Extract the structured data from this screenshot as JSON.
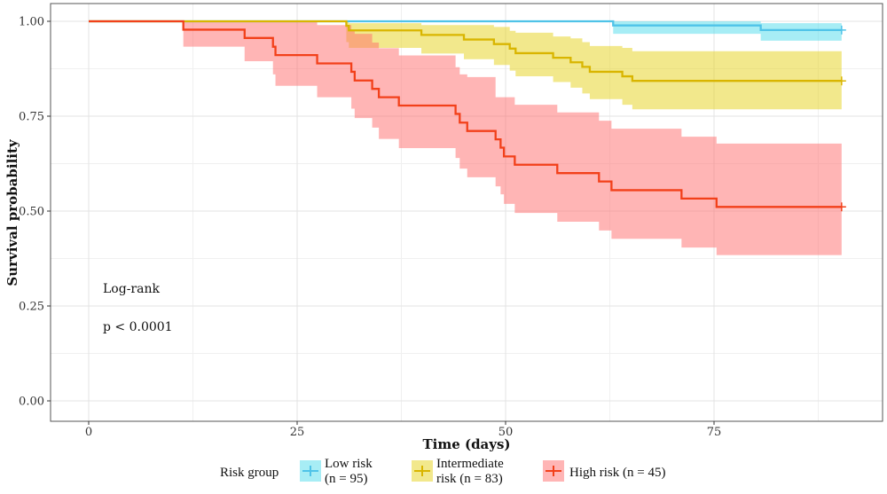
{
  "chart_data": {
    "type": "line",
    "subtype": "kaplan-meier",
    "xlabel": "Time (days)",
    "ylabel": "Survival probability",
    "xlim": [
      -9,
      91
    ],
    "ylim": [
      -0.05,
      1.045
    ],
    "xticks": [
      0,
      25,
      50,
      75
    ],
    "xtick_labels": [
      "0",
      "25",
      "50",
      "75"
    ],
    "yticks": [
      0,
      0.25,
      0.5,
      0.75,
      1.0
    ],
    "ytick_labels": [
      "0.00",
      "0.25",
      "0.50",
      "0.75",
      "1.00"
    ],
    "grid": true,
    "annotations": [
      "Log-rank",
      "p < 0.0001"
    ],
    "legend": {
      "title": "Risk group",
      "placement": "bottom"
    },
    "end_time": 90.3,
    "series": [
      {
        "name": "Low risk (n = 95)",
        "label_lines": [
          "Low risk",
          "(n = 95)"
        ],
        "color": "#4fc3e8",
        "fill": "#4fdcec",
        "steps": [
          [
            0,
            1,
            1,
            1
          ],
          [
            62.9,
            0.989,
            0.967,
            1
          ],
          [
            80.6,
            0.977,
            0.949,
            0.995
          ]
        ]
      },
      {
        "name": "Intermediate risk (n = 83)",
        "label_lines": [
          "Intermediate",
          "risk (n = 83)"
        ],
        "color": "#d9b500",
        "fill": "#e6d21a",
        "steps": [
          [
            0,
            1,
            1,
            1
          ],
          [
            30.9,
            0.988,
            0.945,
            1
          ],
          [
            31.2,
            0.976,
            0.93,
            0.995
          ],
          [
            39.9,
            0.964,
            0.915,
            0.99
          ],
          [
            45.0,
            0.952,
            0.9,
            0.99
          ],
          [
            48.6,
            0.94,
            0.885,
            0.985
          ],
          [
            50.5,
            0.928,
            0.87,
            0.975
          ],
          [
            51.2,
            0.916,
            0.855,
            0.97
          ],
          [
            55.7,
            0.904,
            0.84,
            0.96
          ],
          [
            57.8,
            0.892,
            0.825,
            0.955
          ],
          [
            59.2,
            0.88,
            0.81,
            0.945
          ],
          [
            60.1,
            0.867,
            0.795,
            0.935
          ],
          [
            64.0,
            0.855,
            0.78,
            0.93
          ],
          [
            65.2,
            0.843,
            0.768,
            0.921
          ]
        ]
      },
      {
        "name": "High risk (n = 45)",
        "label_lines": [
          "High risk (n = 45)"
        ],
        "color": "#f2401a",
        "fill": "#ff6b6b",
        "steps": [
          [
            0,
            1,
            1,
            1
          ],
          [
            11.35,
            0.978,
            0.933,
            1
          ],
          [
            18.7,
            0.956,
            0.895,
            1
          ],
          [
            22.1,
            0.933,
            0.86,
            1
          ],
          [
            22.4,
            0.911,
            0.83,
            1
          ],
          [
            27.4,
            0.889,
            0.8,
            0.99
          ],
          [
            31.5,
            0.867,
            0.77,
            0.975
          ],
          [
            31.9,
            0.844,
            0.745,
            0.967
          ],
          [
            34.0,
            0.822,
            0.72,
            0.944
          ],
          [
            34.8,
            0.8,
            0.69,
            0.929
          ],
          [
            37.2,
            0.778,
            0.666,
            0.91
          ],
          [
            44.0,
            0.756,
            0.64,
            0.879
          ],
          [
            44.5,
            0.733,
            0.612,
            0.86
          ],
          [
            45.4,
            0.711,
            0.589,
            0.853
          ],
          [
            48.8,
            0.689,
            0.565,
            0.8
          ],
          [
            49.4,
            0.667,
            0.544,
            0.8
          ],
          [
            49.8,
            0.644,
            0.519,
            0.8
          ],
          [
            51.1,
            0.622,
            0.495,
            0.78
          ],
          [
            56.2,
            0.6,
            0.472,
            0.76
          ],
          [
            61.2,
            0.578,
            0.449,
            0.738
          ],
          [
            62.7,
            0.555,
            0.427,
            0.717
          ],
          [
            71.1,
            0.533,
            0.404,
            0.696
          ],
          [
            75.3,
            0.511,
            0.384,
            0.678
          ]
        ]
      }
    ]
  }
}
